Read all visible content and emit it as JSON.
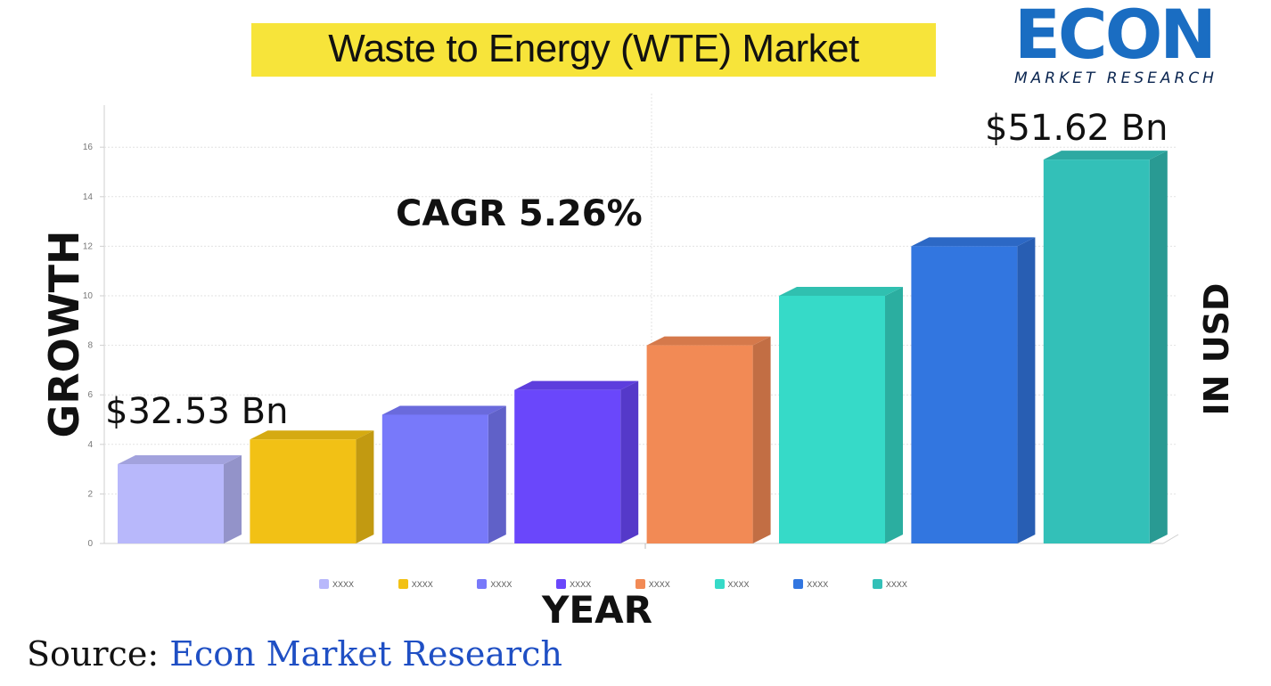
{
  "title": "Waste to Energy (WTE) Market",
  "logo": {
    "name": "ECON",
    "tagline": "MARKET RESEARCH",
    "brand_color": "#1a6dc2"
  },
  "annotations": {
    "start_value": "$32.53 Bn",
    "end_value": "$51.62 Bn",
    "cagr": "CAGR 5.26%"
  },
  "axis_titles": {
    "y": "GROWTH",
    "y_right": "IN USD",
    "x": "YEAR"
  },
  "source": {
    "prefix": "Source:",
    "org": "Econ Market Research"
  },
  "chart_data": {
    "type": "bar",
    "title": "",
    "xlabel": "YEAR",
    "ylabel": "GROWTH",
    "ylim": [
      0,
      17.5
    ],
    "yticks": [
      0,
      2,
      4,
      6,
      8,
      10,
      12,
      14,
      16
    ],
    "grid": true,
    "legend": "bottom",
    "values": [
      3.2,
      4.2,
      5.2,
      6.2,
      8.0,
      10.0,
      12.0,
      15.5
    ],
    "legend_labels": [
      "XXXX",
      "XXXX",
      "XXXX",
      "XXXX",
      "XXXX",
      "XXXX",
      "XXXX",
      "XXXX"
    ],
    "colors": [
      "#b8b8fb",
      "#f2c115",
      "#7879fa",
      "#6a47fb",
      "#f28a55",
      "#36dac8",
      "#3276e0",
      "#33c0b8"
    ]
  }
}
